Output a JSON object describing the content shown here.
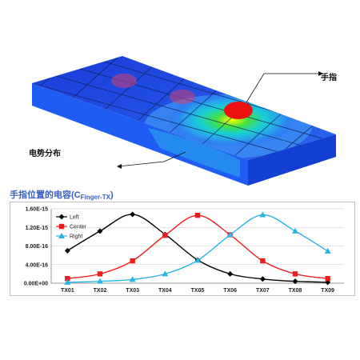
{
  "figure": {
    "finger_label": "手指",
    "potential_label": "电势分布"
  },
  "chart_data": {
    "type": "line",
    "title": "手指位置的电容(C",
    "title_sub": "Finger-TX",
    "title_end": ")",
    "categories": [
      "TX01",
      "TX02",
      "TX03",
      "TX04",
      "TX05",
      "TX06",
      "TX07",
      "TX08",
      "TX09"
    ],
    "y_ticks": [
      "0.00E+00",
      "4.00E-16",
      "8.00E-16",
      "1.20E-15",
      "1.60E-15"
    ],
    "ylim": [
      0,
      1.6e-15
    ],
    "grid": "horizontal",
    "legend_position": "top-left",
    "series": [
      {
        "name": "Left",
        "color": "#000000",
        "marker": "diamond",
        "values": [
          7e-16,
          1.12e-15,
          1.48e-15,
          1.05e-15,
          5e-16,
          2e-16,
          9e-17,
          4e-17,
          2e-17
        ]
      },
      {
        "name": "Center",
        "color": "#ee1c1c",
        "marker": "square",
        "values": [
          1e-16,
          2e-16,
          4.8e-16,
          1.03e-15,
          1.46e-15,
          1.04e-15,
          4.8e-16,
          2e-16,
          1e-16
        ]
      },
      {
        "name": "Right",
        "color": "#29b5e6",
        "marker": "triangle",
        "values": [
          2e-17,
          4e-17,
          8e-17,
          2e-16,
          4.9e-16,
          1.04e-15,
          1.47e-15,
          1.12e-15,
          6.9e-16
        ]
      }
    ]
  }
}
